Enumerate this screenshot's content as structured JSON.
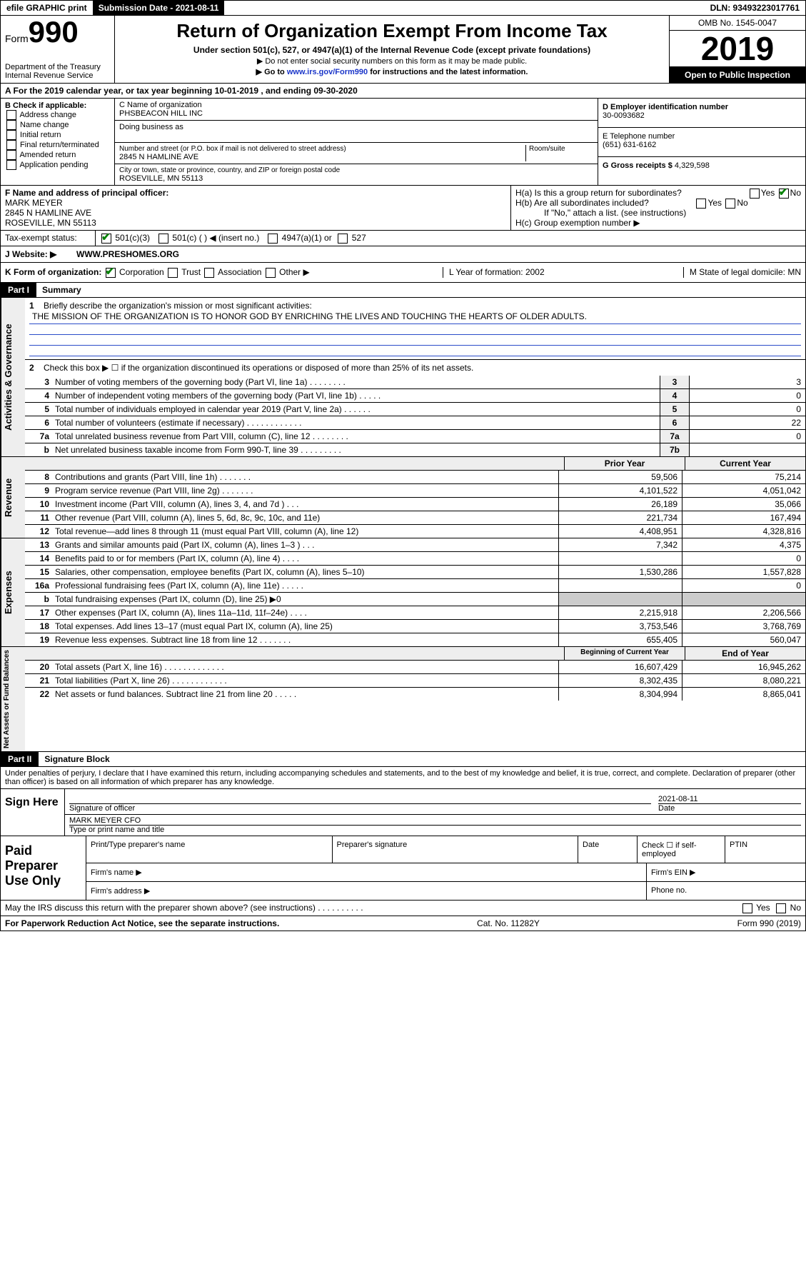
{
  "topbar": {
    "efile": "efile GRAPHIC print",
    "subdate_label": "Submission Date - 2021-08-11",
    "dln": "DLN: 93493223017761"
  },
  "header": {
    "form_label": "Form",
    "form_num": "990",
    "dept": "Department of the Treasury\nInternal Revenue Service",
    "title": "Return of Organization Exempt From Income Tax",
    "subtitle": "Under section 501(c), 527, or 4947(a)(1) of the Internal Revenue Code (except private foundations)",
    "hint1": "▶ Do not enter social security numbers on this form as it may be made public.",
    "hint2_pre": "▶ Go to ",
    "hint2_link": "www.irs.gov/Form990",
    "hint2_post": " for instructions and the latest information.",
    "omb": "OMB No. 1545-0047",
    "year": "2019",
    "open": "Open to Public Inspection"
  },
  "period": {
    "text": "A For the 2019 calendar year, or tax year beginning 10-01-2019    , and ending 09-30-2020"
  },
  "boxB": {
    "label": "B Check if applicable:",
    "opts": [
      "Address change",
      "Name change",
      "Initial return",
      "Final return/terminated",
      "Amended return",
      "Application pending"
    ]
  },
  "boxC": {
    "namelabel": "C Name of organization",
    "name": "PHSBEACON HILL INC",
    "dba_label": "Doing business as",
    "addr_label": "Number and street (or P.O. box if mail is not delivered to street address)",
    "room_label": "Room/suite",
    "addr": "2845 N HAMLINE AVE",
    "city_label": "City or town, state or province, country, and ZIP or foreign postal code",
    "city": "ROSEVILLE, MN  55113"
  },
  "boxDE": {
    "d_label": "D Employer identification number",
    "d_val": "30-0093682",
    "e_label": "E Telephone number",
    "e_val": "(651) 631-6162",
    "g_label": "G Gross receipts $",
    "g_val": "4,329,598"
  },
  "boxF": {
    "label": "F  Name and address of principal officer:",
    "name": "MARK MEYER",
    "addr1": "2845 N HAMLINE AVE",
    "addr2": "ROSEVILLE, MN  55113"
  },
  "boxH": {
    "ha": "H(a)  Is this a group return for subordinates?",
    "hb": "H(b)  Are all subordinates included?",
    "hb_note": "If \"No,\" attach a list. (see instructions)",
    "hc": "H(c)  Group exemption number ▶"
  },
  "taxexempt": {
    "label": "Tax-exempt status:",
    "c3": "501(c)(3)",
    "c": "501(c) (   ) ◀ (insert no.)",
    "a1": "4947(a)(1) or",
    "s527": "527"
  },
  "website": {
    "label": "J Website: ▶",
    "val": "WWW.PRESHOMES.ORG"
  },
  "formorg": {
    "k": "K Form of organization:",
    "corp": "Corporation",
    "trust": "Trust",
    "assoc": "Association",
    "other": "Other ▶",
    "l": "L Year of formation: 2002",
    "m": "M State of legal domicile: MN"
  },
  "part1": {
    "label": "Part I",
    "title": "Summary",
    "q1": "Briefly describe the organization's mission or most significant activities:",
    "mission": "THE MISSION OF THE ORGANIZATION IS TO HONOR GOD BY ENRICHING THE LIVES AND TOUCHING THE HEARTS OF OLDER ADULTS.",
    "q2": "Check this box ▶ ☐  if the organization discontinued its operations or disposed of more than 25% of its net assets.",
    "governance_label": "Activities & Governance",
    "revenue_label": "Revenue",
    "expenses_label": "Expenses",
    "netassets_label": "Net Assets or Fund Balances",
    "rows_gov": [
      {
        "n": "3",
        "t": "Number of voting members of the governing body (Part VI, line 1a)   .   .   .   .   .   .   .   .",
        "c": "3",
        "v": "3"
      },
      {
        "n": "4",
        "t": "Number of independent voting members of the governing body (Part VI, line 1b)   .   .   .   .   .",
        "c": "4",
        "v": "0"
      },
      {
        "n": "5",
        "t": "Total number of individuals employed in calendar year 2019 (Part V, line 2a)   .   .   .   .   .   .",
        "c": "5",
        "v": "0"
      },
      {
        "n": "6",
        "t": "Total number of volunteers (estimate if necessary)   .   .   .   .   .   .   .   .   .   .   .   .",
        "c": "6",
        "v": "22"
      },
      {
        "n": "7a",
        "t": "Total unrelated business revenue from Part VIII, column (C), line 12   .   .   .   .   .   .   .   .",
        "c": "7a",
        "v": "0"
      },
      {
        "n": "b",
        "t": "Net unrelated business taxable income from Form 990-T, line 39   .   .   .   .   .   .   .   .   .",
        "c": "7b",
        "v": ""
      }
    ],
    "col_prior": "Prior Year",
    "col_current": "Current Year",
    "rows_rev": [
      {
        "n": "8",
        "t": "Contributions and grants (Part VIII, line 1h)   .   .   .   .   .   .   .",
        "p": "59,506",
        "c": "75,214"
      },
      {
        "n": "9",
        "t": "Program service revenue (Part VIII, line 2g)   .   .   .   .   .   .   .",
        "p": "4,101,522",
        "c": "4,051,042"
      },
      {
        "n": "10",
        "t": "Investment income (Part VIII, column (A), lines 3, 4, and 7d )   .   .   .",
        "p": "26,189",
        "c": "35,066"
      },
      {
        "n": "11",
        "t": "Other revenue (Part VIII, column (A), lines 5, 6d, 8c, 9c, 10c, and 11e)",
        "p": "221,734",
        "c": "167,494"
      },
      {
        "n": "12",
        "t": "Total revenue—add lines 8 through 11 (must equal Part VIII, column (A), line 12)",
        "p": "4,408,951",
        "c": "4,328,816"
      }
    ],
    "rows_exp": [
      {
        "n": "13",
        "t": "Grants and similar amounts paid (Part IX, column (A), lines 1–3 )   .   .   .",
        "p": "7,342",
        "c": "4,375"
      },
      {
        "n": "14",
        "t": "Benefits paid to or for members (Part IX, column (A), line 4)   .   .   .   .",
        "p": "",
        "c": "0"
      },
      {
        "n": "15",
        "t": "Salaries, other compensation, employee benefits (Part IX, column (A), lines 5–10)",
        "p": "1,530,286",
        "c": "1,557,828"
      },
      {
        "n": "16a",
        "t": "Professional fundraising fees (Part IX, column (A), line 11e)   .   .   .   .   .",
        "p": "",
        "c": "0"
      },
      {
        "n": "b",
        "t": "Total fundraising expenses (Part IX, column (D), line 25) ▶0",
        "p": "—hide—",
        "c": "—hide—"
      },
      {
        "n": "17",
        "t": "Other expenses (Part IX, column (A), lines 11a–11d, 11f–24e)   .   .   .   .",
        "p": "2,215,918",
        "c": "2,206,566"
      },
      {
        "n": "18",
        "t": "Total expenses. Add lines 13–17 (must equal Part IX, column (A), line 25)",
        "p": "3,753,546",
        "c": "3,768,769"
      },
      {
        "n": "19",
        "t": "Revenue less expenses. Subtract line 18 from line 12   .   .   .   .   .   .   .",
        "p": "655,405",
        "c": "560,047"
      }
    ],
    "col_begin": "Beginning of Current Year",
    "col_end": "End of Year",
    "rows_net": [
      {
        "n": "20",
        "t": "Total assets (Part X, line 16)   .   .   .   .   .   .   .   .   .   .   .   .   .",
        "p": "16,607,429",
        "c": "16,945,262"
      },
      {
        "n": "21",
        "t": "Total liabilities (Part X, line 26)   .   .   .   .   .   .   .   .   .   .   .   .",
        "p": "8,302,435",
        "c": "8,080,221"
      },
      {
        "n": "22",
        "t": "Net assets or fund balances. Subtract line 21 from line 20   .   .   .   .   .",
        "p": "8,304,994",
        "c": "8,865,041"
      }
    ]
  },
  "part2": {
    "label": "Part II",
    "title": "Signature Block",
    "declaration": "Under penalties of perjury, I declare that I have examined this return, including accompanying schedules and statements, and to the best of my knowledge and belief, it is true, correct, and complete. Declaration of preparer (other than officer) is based on all information of which preparer has any knowledge."
  },
  "sign": {
    "label": "Sign Here",
    "sig_label": "Signature of officer",
    "date": "2021-08-11",
    "date_label": "Date",
    "name": "MARK MEYER CFO",
    "name_label": "Type or print name and title"
  },
  "paid": {
    "label": "Paid Preparer Use Only",
    "h1": "Print/Type preparer's name",
    "h2": "Preparer's signature",
    "h3": "Date",
    "h4": "Check ☐ if self-employed",
    "h5": "PTIN",
    "firm_name": "Firm's name   ▶",
    "firm_ein": "Firm's EIN ▶",
    "firm_addr": "Firm's address ▶",
    "phone": "Phone no."
  },
  "footer": {
    "irs_discuss": "May the IRS discuss this return with the preparer shown above? (see instructions)   .   .   .   .   .   .   .   .   .   .",
    "yes": "Yes",
    "no": "No",
    "paperwork": "For Paperwork Reduction Act Notice, see the separate instructions.",
    "cat": "Cat. No. 11282Y",
    "form": "Form 990 (2019)"
  }
}
